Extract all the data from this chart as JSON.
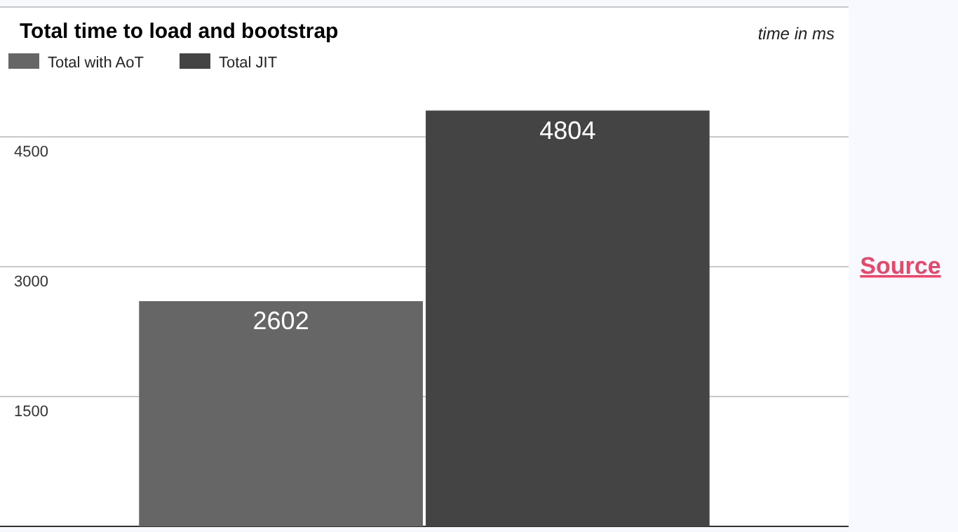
{
  "chart_data": {
    "type": "bar",
    "title": "Total time to load and bootstrap",
    "subtitle": "time in ms",
    "categories": [
      null
    ],
    "series": [
      {
        "name": "Total with AoT",
        "color": "#666666",
        "values": [
          2602
        ]
      },
      {
        "name": "Total JIT",
        "color": "#444444",
        "values": [
          4804
        ]
      }
    ],
    "ylim": [
      0,
      6000
    ],
    "yticks": [
      {
        "value": 0,
        "label": null
      },
      1500,
      3000,
      4500,
      {
        "value": 6000,
        "label": null
      }
    ],
    "grid": "y",
    "legend": "top left",
    "data_labels": true,
    "annotations": [
      "Source"
    ]
  }
}
